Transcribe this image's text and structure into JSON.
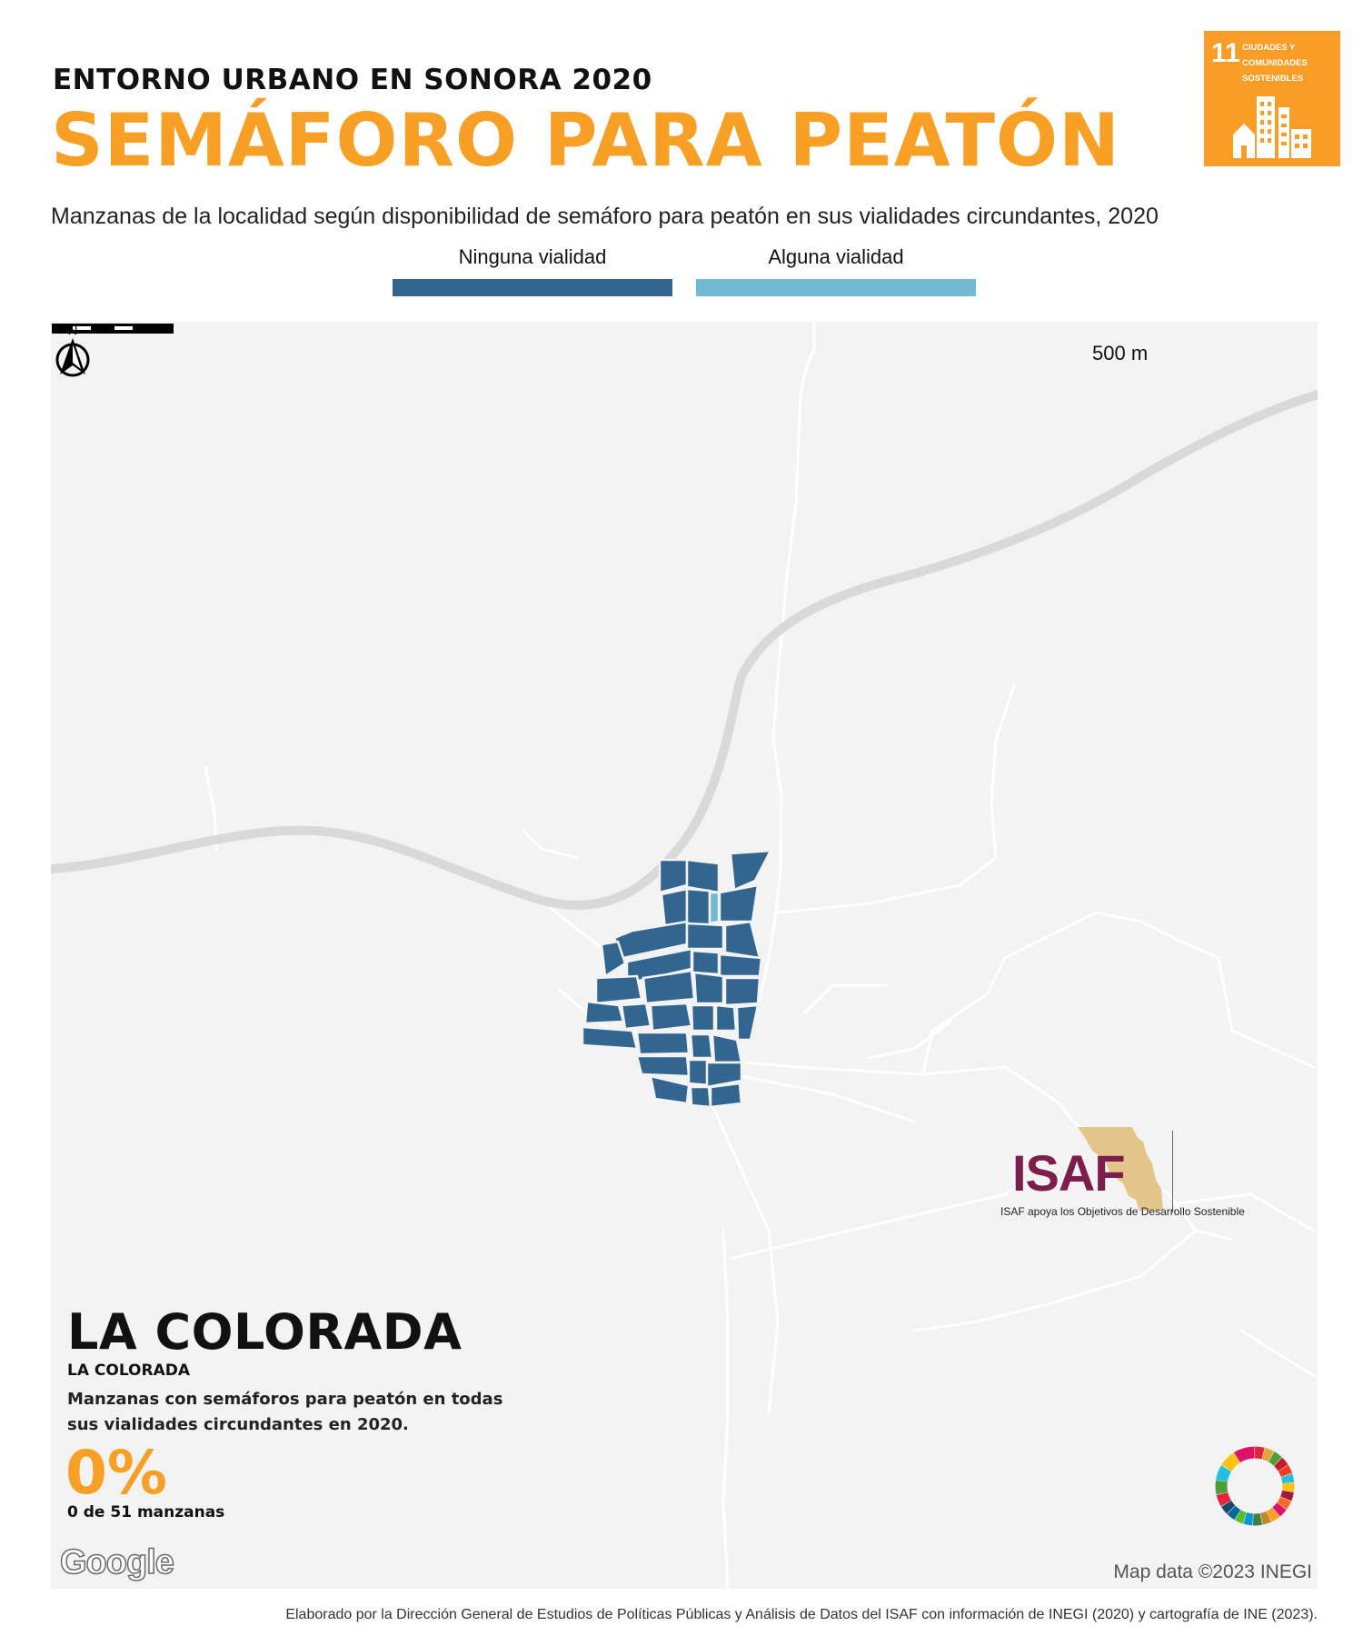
{
  "header": {
    "kicker": "ENTORNO URBANO EN SONORA 2020",
    "title": "SEMÁFORO PARA PEATÓN",
    "subtitle": "Manzanas de la localidad según disponibilidad de semáforo para peatón en sus vialidades circundantes, 2020"
  },
  "sdg_badge": {
    "number": "11",
    "text": "CIUDADES Y\nCOMUNIDADES\nSOSTENIBLES",
    "color": "#f99d26"
  },
  "legend": [
    {
      "label": "Ninguna vialidad",
      "color": "#336591"
    },
    {
      "label": "Alguna vialidad",
      "color": "#72b9d4"
    }
  ],
  "map": {
    "scale_label": "500 m",
    "north_label": "N",
    "background_color": "#f3f3f3",
    "map_data": "Map data ©2023 INEGI",
    "google_logo": "Google"
  },
  "locality": {
    "name": "LA COLORADA",
    "municipality": "LA COLORADA",
    "stat_description": "Manzanas con semáforos para peatón en todas sus vialidades circundantes en 2020.",
    "stat_percent": "0%",
    "stat_count": "0 de 51 manzanas"
  },
  "branding": {
    "isaf": "ISAF",
    "tagline": "ISAF apoya los Objetivos de Desarrollo Sostenible"
  },
  "credit": "Elaborado por la Dirección General de Estudios de Políticas Públicas y Análisis de Datos del ISAF con información de INEGI (2020) y cartografía de INE (2023)."
}
